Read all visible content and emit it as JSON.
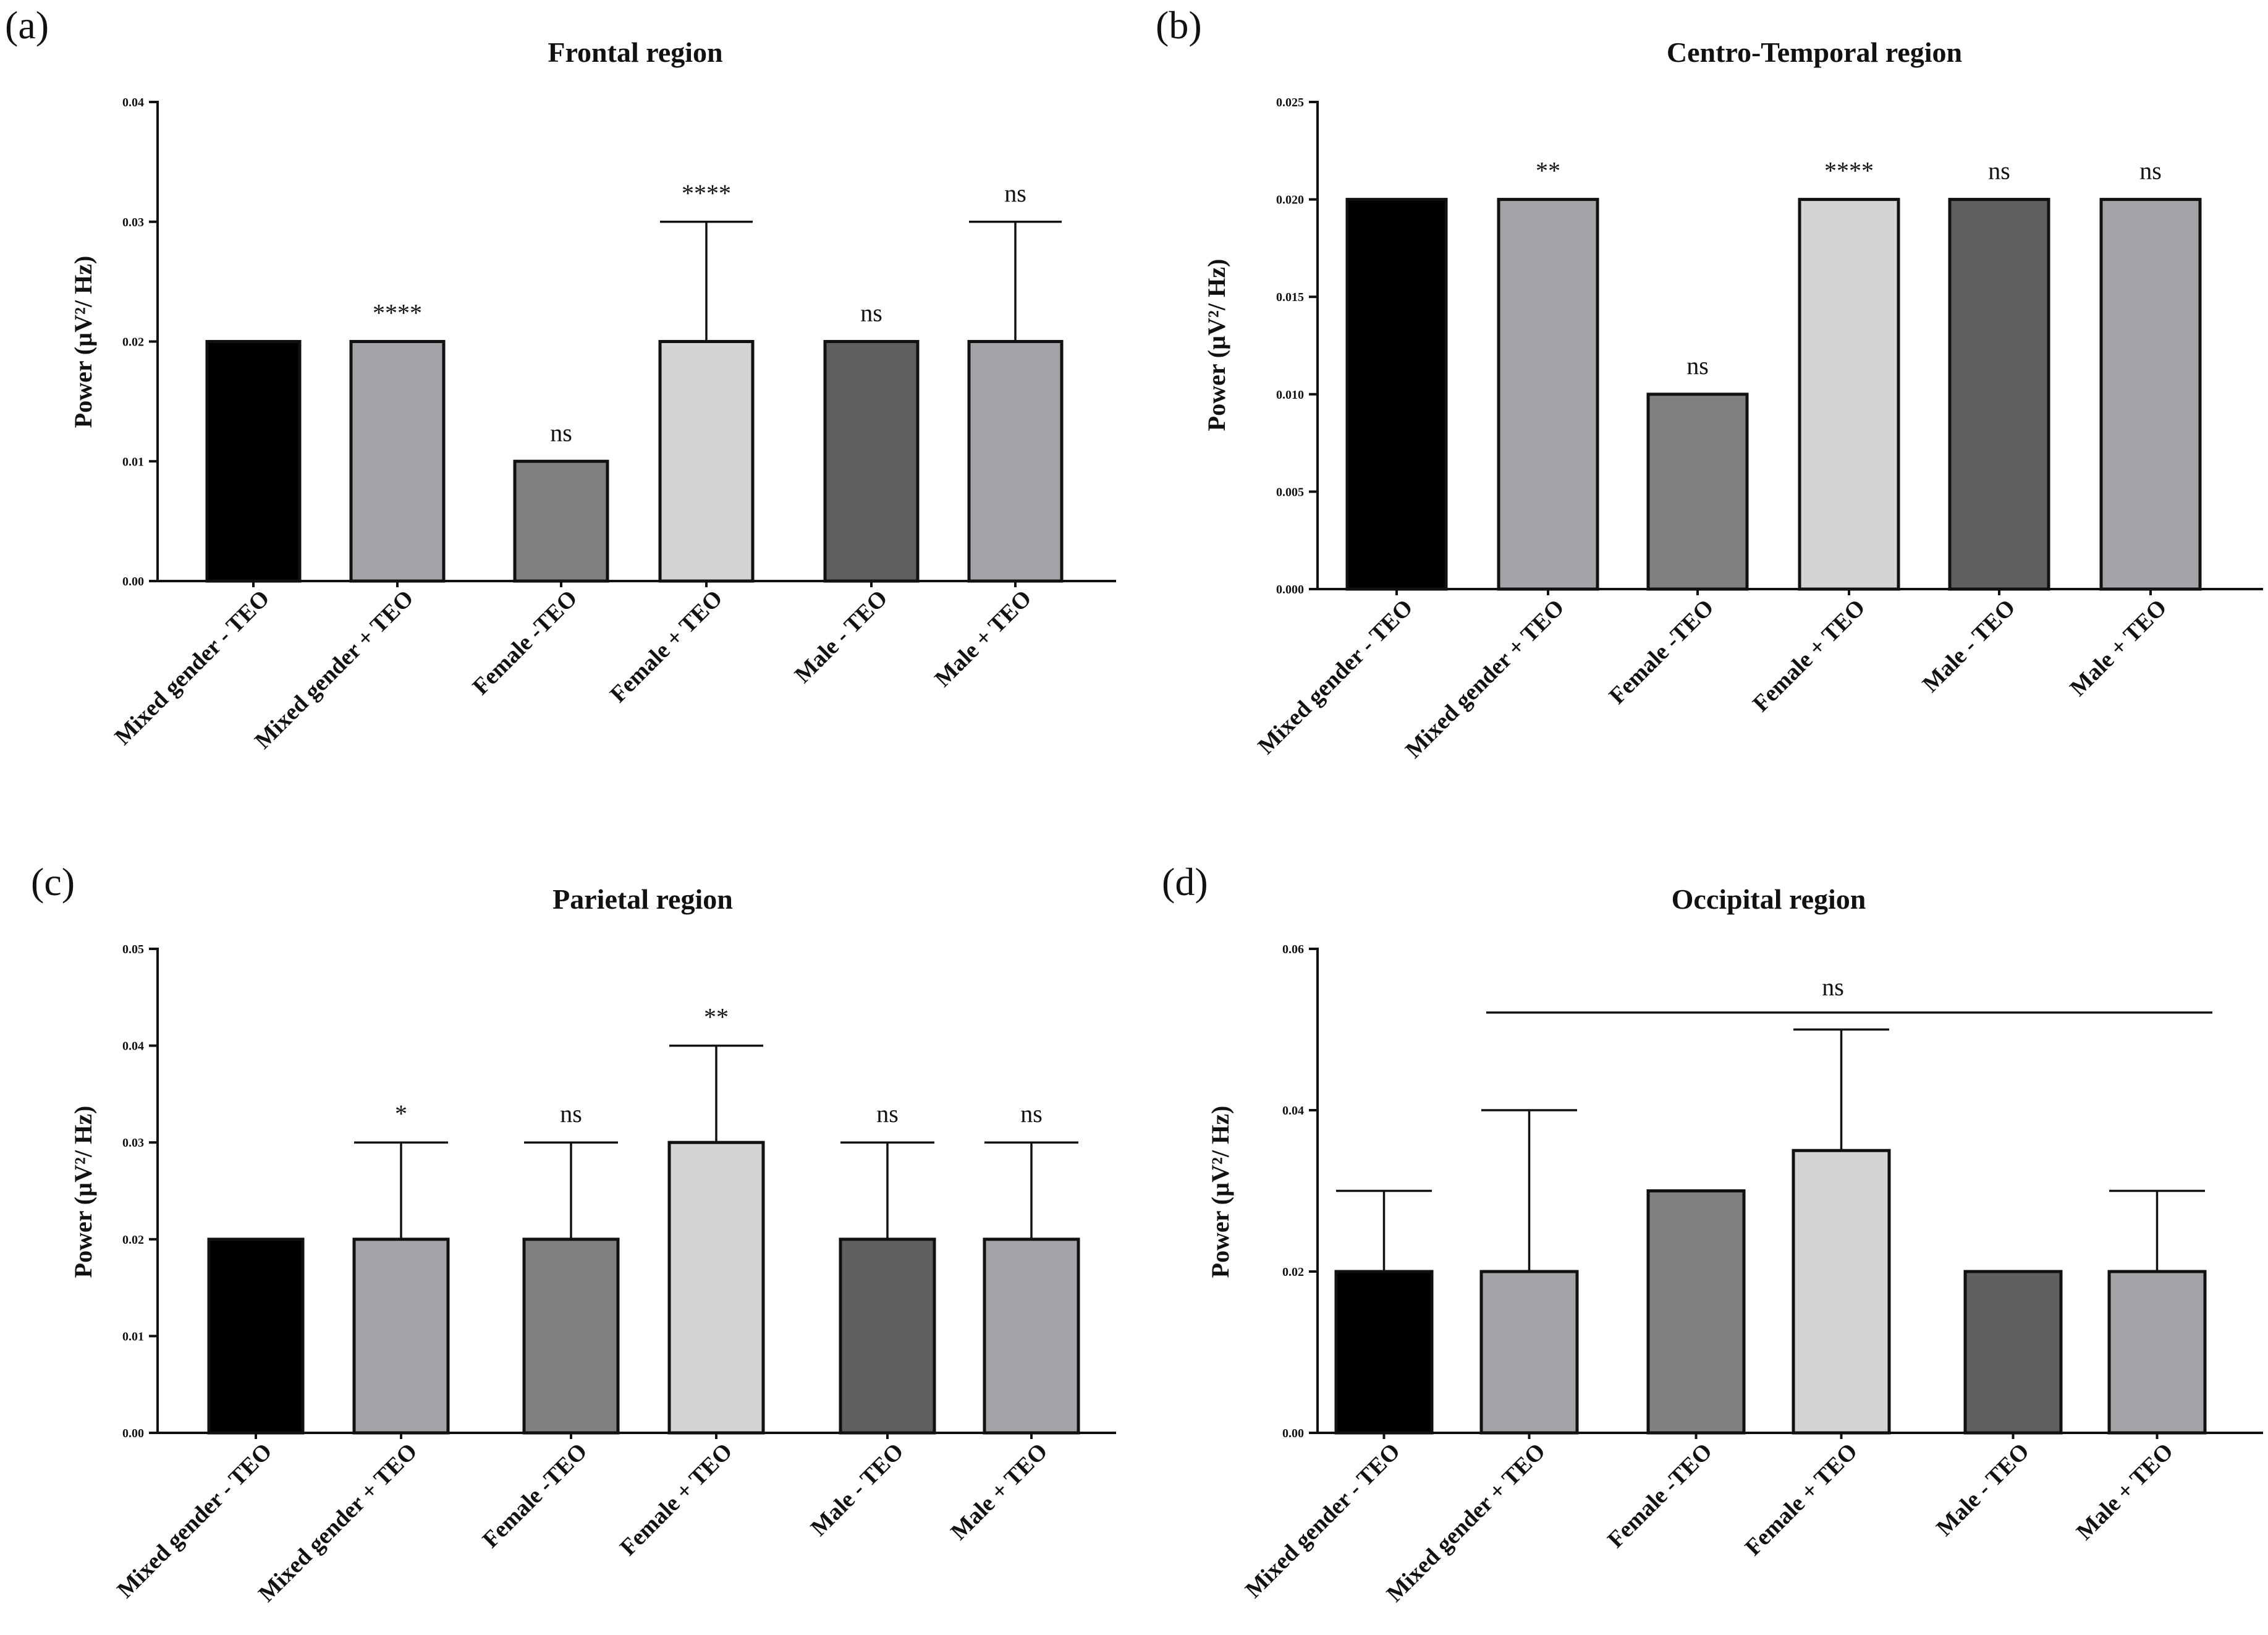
{
  "chart_data": [
    {
      "type": "bar",
      "panel": "(a)",
      "title": "Frontal region",
      "ylabel": "Power (µV²/ Hz)",
      "ylim": [
        0,
        0.04
      ],
      "yticks": [
        "0.00",
        "0.01",
        "0.02",
        "0.03",
        "0.04"
      ],
      "categories": [
        "Mixed gender - TEO",
        "Mixed gender + TEO",
        "Female -TEO",
        "Female + TEO",
        "Male - TEO",
        "Male + TEO"
      ],
      "values": [
        0.02,
        0.02,
        0.01,
        0.02,
        0.02,
        0.02
      ],
      "errors": [
        0,
        0,
        0,
        0.01,
        0,
        0.01
      ],
      "annotations": [
        "",
        "****",
        "ns",
        "****",
        "ns",
        "ns"
      ],
      "colors": [
        "#000000",
        "#a3a3a8",
        "#808080",
        "#d4d4d4",
        "#5f5f5f",
        "#a3a3a8"
      ],
      "group_annotation": ""
    },
    {
      "type": "bar",
      "panel": "(b)",
      "title": "Centro-Temporal region",
      "ylabel": "Power (µV²/ Hz)",
      "ylim": [
        0,
        0.025
      ],
      "yticks": [
        "0.000",
        "0.005",
        "0.010",
        "0.015",
        "0.020",
        "0.025"
      ],
      "categories": [
        "Mixed gender - TEO",
        "Mixed gender + TEO",
        "Female -TEO",
        "Female + TEO",
        "Male - TEO",
        "Male + TEO"
      ],
      "values": [
        0.02,
        0.02,
        0.01,
        0.02,
        0.02,
        0.02
      ],
      "errors": [
        0,
        0,
        0,
        0,
        0,
        0
      ],
      "annotations": [
        "",
        "**",
        "ns",
        "****",
        "ns",
        "ns"
      ],
      "colors": [
        "#000000",
        "#a3a3a8",
        "#808080",
        "#d4d4d4",
        "#5f5f5f",
        "#a3a3a8"
      ],
      "group_annotation": ""
    },
    {
      "type": "bar",
      "panel": "(c)",
      "title": "Parietal region",
      "ylabel": "Power (µV²/ Hz)",
      "ylim": [
        0,
        0.05
      ],
      "yticks": [
        "0.00",
        "0.01",
        "0.02",
        "0.03",
        "0.04",
        "0.05"
      ],
      "categories": [
        "Mixed gender - TEO",
        "Mixed gender + TEO",
        "Female -TEO",
        "Female + TEO",
        "Male - TEO",
        "Male + TEO"
      ],
      "values": [
        0.02,
        0.02,
        0.02,
        0.03,
        0.02,
        0.02
      ],
      "errors": [
        0,
        0.01,
        0.01,
        0.01,
        0.01,
        0.01
      ],
      "annotations": [
        "",
        "*",
        "ns",
        "**",
        "ns",
        "ns"
      ],
      "colors": [
        "#000000",
        "#a3a3a8",
        "#808080",
        "#d4d4d4",
        "#5f5f5f",
        "#a3a3a8"
      ],
      "group_annotation": ""
    },
    {
      "type": "bar",
      "panel": "(d)",
      "title": "Occipital region",
      "ylabel": "Power (µV²/ Hz)",
      "ylim": [
        0,
        0.06
      ],
      "yticks": [
        "0.00",
        "0.02",
        "0.04",
        "0.06"
      ],
      "categories": [
        "Mixed gender - TEO",
        "Mixed gender + TEO",
        "Female -TEO",
        "Female + TEO",
        "Male - TEO",
        "Male + TEO"
      ],
      "values": [
        0.02,
        0.02,
        0.03,
        0.035,
        0.02,
        0.02
      ],
      "errors": [
        0.01,
        0.02,
        0,
        0.015,
        0,
        0.01
      ],
      "annotations": [
        "",
        "",
        "",
        "",
        "",
        ""
      ],
      "colors": [
        "#000000",
        "#a3a3a8",
        "#808080",
        "#d4d4d4",
        "#5f5f5f",
        "#a3a3a8"
      ],
      "group_annotation": "ns"
    }
  ]
}
